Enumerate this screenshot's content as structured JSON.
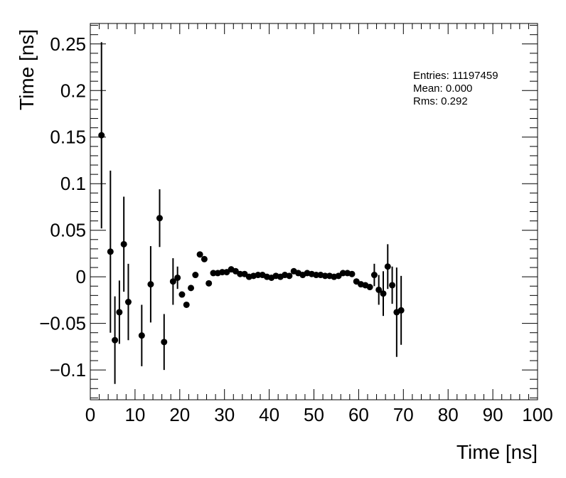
{
  "chart_data": {
    "type": "scatter",
    "xlabel": "Time [ns]",
    "ylabel": "Time [ns]",
    "xlim": [
      0,
      100
    ],
    "ylim": [
      -0.132,
      0.272
    ],
    "xticks": [
      0,
      10,
      20,
      30,
      40,
      50,
      60,
      70,
      80,
      90,
      100
    ],
    "yticks": [
      -0.1,
      -0.05,
      0,
      0.05,
      0.1,
      0.15,
      0.2,
      0.25
    ],
    "ytick_labels": [
      "−0.1",
      "−0.05",
      "0",
      "0.05",
      "0.1",
      "0.15",
      "0.2",
      "0.25"
    ],
    "grid": false,
    "stats": {
      "entries": "Entries: 11197459",
      "mean": "Mean: 0.000",
      "rms": "Rms: 0.292"
    },
    "points": [
      {
        "x": 2.5,
        "y": 0.152,
        "err": 0.1
      },
      {
        "x": 4.5,
        "y": 0.027,
        "err": 0.087
      },
      {
        "x": 5.5,
        "y": -0.068,
        "err": 0.047
      },
      {
        "x": 6.5,
        "y": -0.038,
        "err": 0.034
      },
      {
        "x": 7.5,
        "y": 0.035,
        "err": 0.051
      },
      {
        "x": 8.5,
        "y": -0.027,
        "err": 0.041
      },
      {
        "x": 11.5,
        "y": -0.063,
        "err": 0.033
      },
      {
        "x": 13.5,
        "y": -0.008,
        "err": 0.041
      },
      {
        "x": 15.5,
        "y": 0.063,
        "err": 0.031
      },
      {
        "x": 16.5,
        "y": -0.07,
        "err": 0.03
      },
      {
        "x": 18.5,
        "y": -0.005,
        "err": 0.025
      },
      {
        "x": 19.5,
        "y": -0.001,
        "err": 0.012
      },
      {
        "x": 20.5,
        "y": -0.019,
        "err": 0.002
      },
      {
        "x": 21.5,
        "y": -0.03,
        "err": 0.002
      },
      {
        "x": 22.5,
        "y": -0.012,
        "err": 0.002
      },
      {
        "x": 23.5,
        "y": 0.002,
        "err": 0.001
      },
      {
        "x": 24.5,
        "y": 0.024,
        "err": 0.001
      },
      {
        "x": 25.5,
        "y": 0.019,
        "err": 0.001
      },
      {
        "x": 26.5,
        "y": -0.007,
        "err": 0.001
      },
      {
        "x": 27.5,
        "y": 0.004,
        "err": 0.001
      },
      {
        "x": 28.5,
        "y": 0.004,
        "err": 0.001
      },
      {
        "x": 29.5,
        "y": 0.005,
        "err": 0.001
      },
      {
        "x": 30.5,
        "y": 0.005,
        "err": 0.001
      },
      {
        "x": 31.5,
        "y": 0.008,
        "err": 0.001
      },
      {
        "x": 32.5,
        "y": 0.006,
        "err": 0.001
      },
      {
        "x": 33.5,
        "y": 0.003,
        "err": 0.001
      },
      {
        "x": 34.5,
        "y": 0.003,
        "err": 0.001
      },
      {
        "x": 35.5,
        "y": 0.0,
        "err": 0.001
      },
      {
        "x": 36.5,
        "y": 0.001,
        "err": 0.001
      },
      {
        "x": 37.5,
        "y": 0.002,
        "err": 0.001
      },
      {
        "x": 38.5,
        "y": 0.002,
        "err": 0.001
      },
      {
        "x": 39.5,
        "y": 0.0,
        "err": 0.001
      },
      {
        "x": 40.5,
        "y": -0.001,
        "err": 0.001
      },
      {
        "x": 41.5,
        "y": 0.001,
        "err": 0.001
      },
      {
        "x": 42.5,
        "y": 0.0,
        "err": 0.001
      },
      {
        "x": 43.5,
        "y": 0.002,
        "err": 0.001
      },
      {
        "x": 44.5,
        "y": 0.001,
        "err": 0.001
      },
      {
        "x": 45.5,
        "y": 0.006,
        "err": 0.001
      },
      {
        "x": 46.5,
        "y": 0.004,
        "err": 0.001
      },
      {
        "x": 47.5,
        "y": 0.002,
        "err": 0.001
      },
      {
        "x": 48.5,
        "y": 0.004,
        "err": 0.001
      },
      {
        "x": 49.5,
        "y": 0.003,
        "err": 0.001
      },
      {
        "x": 50.5,
        "y": 0.002,
        "err": 0.001
      },
      {
        "x": 51.5,
        "y": 0.002,
        "err": 0.001
      },
      {
        "x": 52.5,
        "y": 0.001,
        "err": 0.001
      },
      {
        "x": 53.5,
        "y": 0.001,
        "err": 0.001
      },
      {
        "x": 54.5,
        "y": 0.0,
        "err": 0.001
      },
      {
        "x": 55.5,
        "y": 0.001,
        "err": 0.001
      },
      {
        "x": 56.5,
        "y": 0.004,
        "err": 0.001
      },
      {
        "x": 57.5,
        "y": 0.004,
        "err": 0.001
      },
      {
        "x": 58.5,
        "y": 0.003,
        "err": 0.001
      },
      {
        "x": 59.5,
        "y": -0.005,
        "err": 0.001
      },
      {
        "x": 60.5,
        "y": -0.008,
        "err": 0.001
      },
      {
        "x": 61.5,
        "y": -0.009,
        "err": 0.001
      },
      {
        "x": 62.5,
        "y": -0.011,
        "err": 0.001
      },
      {
        "x": 63.5,
        "y": 0.002,
        "err": 0.012
      },
      {
        "x": 64.5,
        "y": -0.014,
        "err": 0.016
      },
      {
        "x": 65.5,
        "y": -0.018,
        "err": 0.024
      },
      {
        "x": 66.5,
        "y": 0.011,
        "err": 0.024
      },
      {
        "x": 67.5,
        "y": -0.009,
        "err": 0.02
      },
      {
        "x": 68.5,
        "y": -0.038,
        "err": 0.048
      },
      {
        "x": 69.5,
        "y": -0.036,
        "err": 0.037
      }
    ]
  }
}
